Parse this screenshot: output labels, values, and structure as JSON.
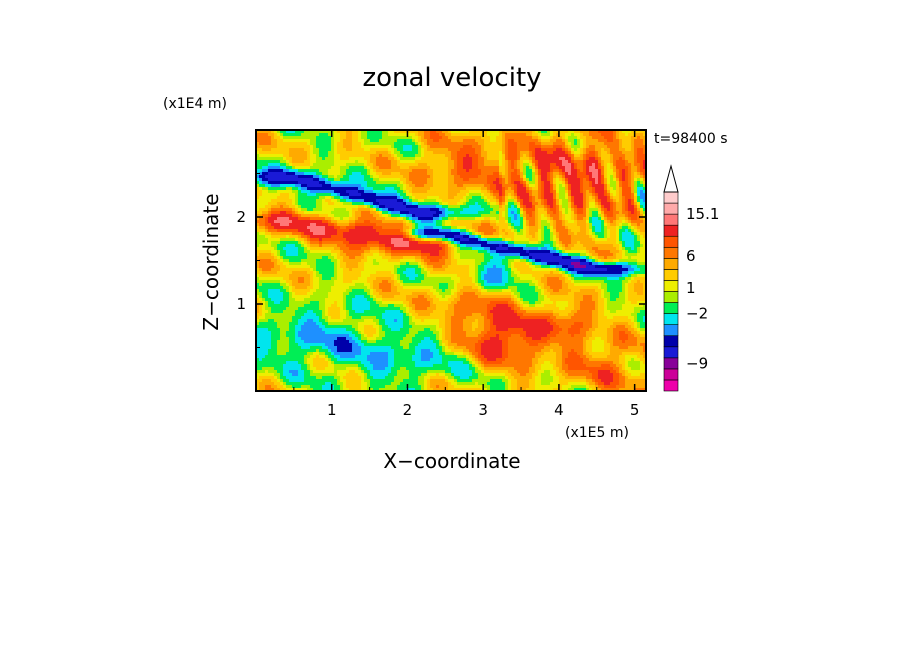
{
  "chart_data": {
    "type": "heatmap",
    "title": "zonal velocity",
    "time_label": "t=98400 s",
    "xlabel": "X−coordinate",
    "ylabel": "Z−coordinate",
    "x_scale_label": "(x1E5 m)",
    "y_scale_label": "(x1E4 m)",
    "xlim": [
      0,
      5.15
    ],
    "ylim": [
      0,
      3.0
    ],
    "x_ticks": [
      {
        "value": 1,
        "label": "1"
      },
      {
        "value": 2,
        "label": "2"
      },
      {
        "value": 3,
        "label": "3"
      },
      {
        "value": 4,
        "label": "4"
      },
      {
        "value": 5,
        "label": "5"
      }
    ],
    "y_ticks": [
      {
        "value": 1,
        "label": "1"
      },
      {
        "value": 2,
        "label": "2"
      }
    ],
    "colorbar": {
      "labels": [
        {
          "value": 15.1,
          "label": "15.1"
        },
        {
          "value": 6,
          "label": "6"
        },
        {
          "value": 1,
          "label": "1"
        },
        {
          "value": -2,
          "label": "−2"
        },
        {
          "value": -9,
          "label": "−9"
        }
      ],
      "colors_bottom_to_top": [
        "#ee00aa",
        "#cc0099",
        "#880099",
        "#1a1ad6",
        "#0000aa",
        "#1e90ff",
        "#00e5ee",
        "#00ee55",
        "#aaee00",
        "#eeee00",
        "#ffcc00",
        "#ffaa00",
        "#ff7700",
        "#ff5500",
        "#ee2222",
        "#ff7777",
        "#ffaaaa",
        "#ffcccc"
      ]
    },
    "features": [
      {
        "type": "band",
        "value": -6,
        "x": [
          0.5,
          2.2
        ],
        "z": [
          2.45,
          2.05
        ]
      },
      {
        "type": "band",
        "value": -6,
        "x": [
          2.6,
          4.5
        ],
        "z": [
          1.75,
          1.35
        ]
      },
      {
        "type": "blob",
        "value": -3,
        "x": 3.1,
        "z": 1.3
      },
      {
        "type": "blob",
        "value": 6,
        "x": 1.4,
        "z": 1.7
      },
      {
        "type": "blob",
        "value": 6,
        "x": 3.3,
        "z": 0.6
      },
      {
        "type": "blob",
        "value": 5,
        "x": 4.1,
        "z": 2.5
      }
    ]
  }
}
